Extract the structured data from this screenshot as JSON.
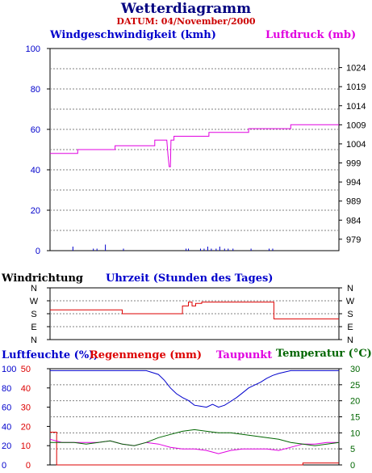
{
  "title": "Wetterdiagramm",
  "date_label": "DATUM: 04/November/2000",
  "panel1": {
    "left_label": "Windgeschwindigkeit (kmh)",
    "right_label": "Luftdruck (mb)"
  },
  "panel2": {
    "left_label": "Windrichtung",
    "center_label": "Uhrzeit (Stunden des Tages)"
  },
  "panel3": {
    "label_humidity": "Luftfeuchte (%),",
    "label_rain": "Regenmenge (mm)",
    "label_dew": "Taupunkt",
    "label_temp": "Temperatur (°C)"
  },
  "colors": {
    "wind_speed": "#0000cc",
    "pressure": "#e000e0",
    "direction": "#dd0000",
    "humidity": "#0000cc",
    "rain": "#dd0000",
    "dewpoint": "#e000e0",
    "temperature": "#006600",
    "grid": "#808080"
  },
  "chart_data": [
    {
      "type": "line",
      "name": "wind-pressure",
      "x_range": [
        0,
        24
      ],
      "y_left": {
        "ylim": [
          0,
          100
        ],
        "ticks": [
          "0",
          "20",
          "40",
          "60",
          "80",
          "100"
        ]
      },
      "y_right": {
        "ylim": [
          976,
          1029
        ],
        "ticks": [
          "979",
          "984",
          "989",
          "994",
          "999",
          "1004",
          "1009",
          "1014",
          "1019",
          "1024"
        ]
      },
      "series": [
        {
          "axis": "right",
          "color_key": "pressure",
          "x": [
            0,
            2.3,
            2.3,
            5.4,
            5.4,
            8.7,
            8.7,
            9.7,
            9.8,
            9.9,
            10.0,
            10.05,
            10.3,
            10.3,
            13.2,
            13.2,
            16.5,
            16.5,
            20.0,
            20.0,
            24
          ],
          "y": [
            1001.5,
            1001.5,
            1002.5,
            1002.5,
            1003.5,
            1003.5,
            1005,
            1005,
            1001,
            998,
            998,
            1005,
            1005,
            1006,
            1006,
            1007,
            1007,
            1008,
            1008,
            1009,
            1009
          ]
        }
      ],
      "wind_spikes": [
        {
          "x": 1.9,
          "y": 2
        },
        {
          "x": 3.6,
          "y": 1
        },
        {
          "x": 3.9,
          "y": 1
        },
        {
          "x": 4.6,
          "y": 3
        },
        {
          "x": 6.1,
          "y": 1
        },
        {
          "x": 11.3,
          "y": 1
        },
        {
          "x": 11.5,
          "y": 1
        },
        {
          "x": 12.5,
          "y": 1
        },
        {
          "x": 12.8,
          "y": 1
        },
        {
          "x": 13.1,
          "y": 2
        },
        {
          "x": 13.4,
          "y": 1
        },
        {
          "x": 13.8,
          "y": 1
        },
        {
          "x": 14.1,
          "y": 2
        },
        {
          "x": 14.5,
          "y": 1
        },
        {
          "x": 14.8,
          "y": 1
        },
        {
          "x": 15.2,
          "y": 1
        },
        {
          "x": 16.7,
          "y": 1
        },
        {
          "x": 18.2,
          "y": 1
        },
        {
          "x": 18.5,
          "y": 1
        }
      ]
    },
    {
      "type": "line",
      "name": "wind-direction",
      "x_range": [
        0,
        24
      ],
      "y_ticks": [
        "N",
        "W",
        "S",
        "E",
        "N"
      ],
      "series": [
        {
          "color_key": "direction",
          "x": [
            0,
            6.0,
            6.0,
            11.0,
            11.0,
            11.5,
            11.5,
            11.8,
            11.8,
            12.1,
            12.1,
            12.6,
            12.6,
            18.6,
            18.6,
            24
          ],
          "y": [
            2.3,
            2.3,
            2.0,
            2.0,
            2.6,
            2.6,
            2.9,
            2.9,
            2.6,
            2.6,
            2.8,
            2.8,
            2.9,
            2.9,
            1.6,
            1.6
          ]
        }
      ]
    },
    {
      "type": "line",
      "name": "humidity-rain-dew-temp",
      "x_range": [
        0,
        24
      ],
      "y_left_outer": {
        "label": "%",
        "ticks": [
          "0",
          "20",
          "40",
          "60",
          "80",
          "100"
        ],
        "ylim": [
          0,
          100
        ]
      },
      "y_left_inner": {
        "label": "mm",
        "ticks": [
          "0",
          "10",
          "20",
          "30",
          "40",
          "50"
        ],
        "ylim": [
          0,
          50
        ]
      },
      "y_right": {
        "label": "°C",
        "ticks": [
          "0",
          "5",
          "10",
          "15",
          "20",
          "25",
          "30"
        ],
        "ylim": [
          0,
          30
        ]
      },
      "series": [
        {
          "color_key": "humidity",
          "axis": "left_outer",
          "x": [
            0,
            7,
            8,
            9,
            9.5,
            10,
            10.5,
            11,
            11.5,
            12,
            12.5,
            13,
            13.5,
            14,
            14.5,
            15,
            15.5,
            16,
            16.5,
            17,
            17.5,
            18,
            18.5,
            19,
            20,
            21,
            22,
            23,
            24
          ],
          "y": [
            98,
            98,
            98,
            94,
            88,
            80,
            74,
            70,
            67,
            62,
            61,
            60,
            63,
            60,
            62,
            66,
            70,
            75,
            80,
            83,
            86,
            90,
            93,
            95,
            98,
            98,
            98,
            98,
            98
          ]
        },
        {
          "color_key": "rain",
          "axis": "left_inner",
          "x": [
            0,
            0.55,
            0.55,
            21.0,
            21.0,
            24
          ],
          "y": [
            17,
            17,
            0,
            0,
            1,
            1
          ]
        },
        {
          "color_key": "dewpoint",
          "axis": "right",
          "x": [
            0,
            1,
            2,
            3,
            4,
            5,
            6,
            7,
            8,
            9,
            10,
            11,
            12,
            13,
            14,
            15,
            16,
            17,
            18,
            19,
            20,
            21,
            22,
            23,
            24
          ],
          "y": [
            8,
            7,
            7,
            7,
            7,
            7.5,
            6.5,
            6,
            7,
            6.5,
            5.5,
            5,
            5,
            4.5,
            3.5,
            4.5,
            5,
            5,
            5,
            4.5,
            5.5,
            6.5,
            6.5,
            7,
            7
          ]
        },
        {
          "color_key": "temperature",
          "axis": "right",
          "x": [
            0,
            1,
            2,
            3,
            4,
            5,
            6,
            7,
            8,
            9,
            10,
            11,
            12,
            13,
            14,
            15,
            16,
            17,
            18,
            19,
            20,
            21,
            22,
            23,
            24
          ],
          "y": [
            7,
            7,
            7,
            6.5,
            7,
            7.5,
            6.5,
            6,
            7,
            8.5,
            9.5,
            10.5,
            11,
            10.5,
            10,
            10,
            9.5,
            9,
            8.5,
            8,
            7,
            6.5,
            6,
            6.5,
            7
          ]
        }
      ]
    }
  ]
}
